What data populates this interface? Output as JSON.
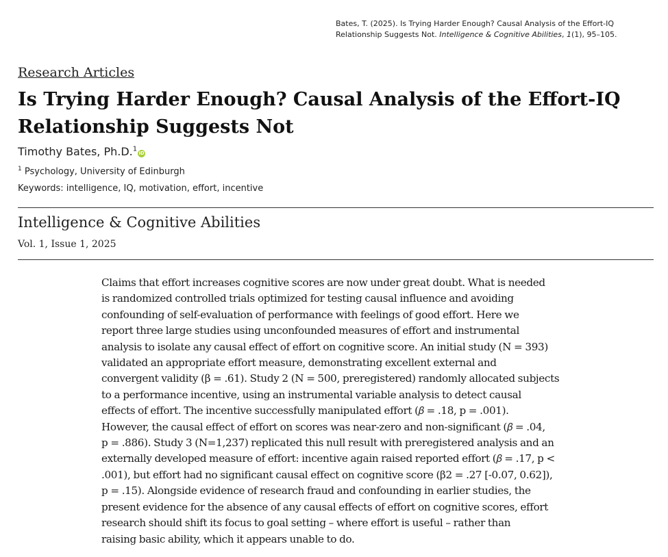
{
  "citation": {
    "prefix": "Bates, T. (2025). Is Trying Harder Enough? Causal Analysis of the Effort-IQ Relationship Suggests Not. ",
    "journal": "Intelligence & Cognitive Abilities",
    "comma": ", ",
    "volume": "1",
    "suffix": "(1), 95–105."
  },
  "section": "Research Articles",
  "title": "Is Trying Harder Enough? Causal Analysis of the Effort-IQ Relationship Suggests Not",
  "author": {
    "name": "Timothy Bates, Ph.D.",
    "affil_marker": "1",
    "orcid_glyph": "iD"
  },
  "affiliation": {
    "marker": "1",
    "text": " Psychology, University of Edinburgh"
  },
  "keywords": "Keywords: intelligence, IQ, motivation, effort, incentive",
  "journal": "Intelligence & Cognitive Abilities",
  "volume_info": "Vol. 1, Issue 1, 2025",
  "abstract_lines": [
    "Claims that effort increases cognitive scores are now under great doubt. What is needed",
    "is randomized controlled trials optimized for testing causal influence and avoiding",
    "confounding of self-evaluation of performance with feelings of good effort. Here we",
    "report three large studies using unconfounded measures of effort and instrumental",
    "analysis to isolate any causal effect of effort on cognitive score. An initial study (N = 393)",
    "validated an appropriate effort measure, demonstrating excellent external and",
    "convergent validity (β = .61). Study 2 (N = 500, preregistered) randomly allocated subjects",
    "to a performance incentive, using an instrumental variable analysis to detect causal",
    "effects of effort. The incentive successfully manipulated effort (𝛽 = .18, p = .001).",
    "However, the causal effect of effort on scores was near-zero and non-significant (𝛽 = .04,",
    "p = .886). Study 3 (N=1,237) replicated this null result with preregistered analysis and an",
    "externally developed measure of effort: incentive again raised reported effort (𝛽 = .17, p <",
    ".001), but effort had no significant causal effect on cognitive score (β2 = .27 [-0.07, 0.62]),",
    "p = .15). Alongside evidence of research fraud and confounding in earlier studies, the",
    "present evidence for the absence of any causal effects of effort on cognitive scores, effort",
    "research should shift its focus to goal setting – where effort is useful – rather than",
    "raising basic ability, which it appears unable to do."
  ],
  "colors": {
    "orcid": "#a6ce39",
    "rule": "#333333"
  }
}
